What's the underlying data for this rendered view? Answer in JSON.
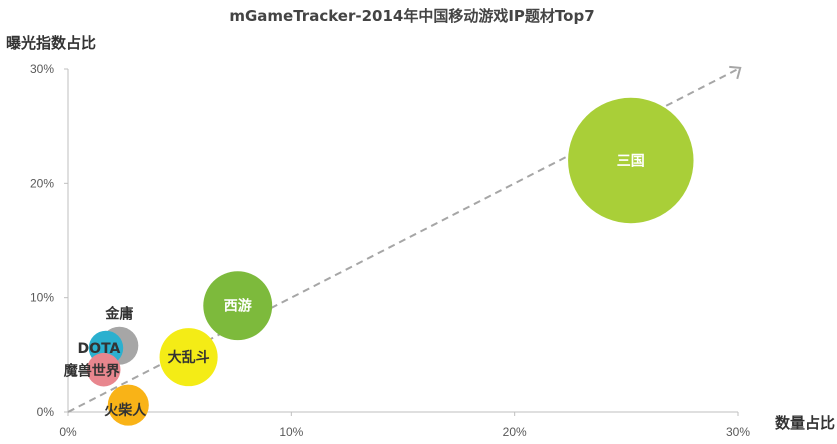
{
  "chart_data": {
    "type": "scatter",
    "subtype": "bubble",
    "title": "mGameTracker-2014年中国移动游戏IP题材Top7",
    "xlabel": "数量占比",
    "ylabel": "曝光指数占比",
    "xlim": [
      0,
      30
    ],
    "ylim": [
      0,
      30
    ],
    "x_ticks": [
      "0%",
      "10%",
      "20%",
      "30%"
    ],
    "y_ticks": [
      "0%",
      "10%",
      "20%",
      "30%"
    ],
    "grid": false,
    "trend_line": "dashed arrow",
    "points": [
      {
        "label": "三国",
        "x": 25.2,
        "y": 22.0,
        "size": 25.2,
        "color": "#a9cf38",
        "label_color": "#ffffff"
      },
      {
        "label": "西游",
        "x": 7.6,
        "y": 9.3,
        "size": 7.6,
        "color": "#7dba3c",
        "label_color": "#ffffff"
      },
      {
        "label": "大乱斗",
        "x": 5.4,
        "y": 4.8,
        "size": 5.4,
        "color": "#f4ec16",
        "label_color": "#333333"
      },
      {
        "label": "金庸",
        "x": 2.3,
        "y": 5.8,
        "size": 2.3,
        "color": "#a6a6a6",
        "label_color": "#333333"
      },
      {
        "label": "DOTA",
        "x": 1.7,
        "y": 5.6,
        "size": 1.9,
        "color": "#2bb0cf",
        "label_color": "#333333"
      },
      {
        "label": "魔兽世界",
        "x": 1.6,
        "y": 3.7,
        "size": 1.8,
        "color": "#e8868e",
        "label_color": "#333333"
      },
      {
        "label": "火柴人",
        "x": 2.7,
        "y": 0.6,
        "size": 2.7,
        "color": "#f9b317",
        "label_color": "#333333"
      }
    ],
    "colors": {
      "axis": "#bfbfbf",
      "trend": "#a6a6a6"
    }
  }
}
